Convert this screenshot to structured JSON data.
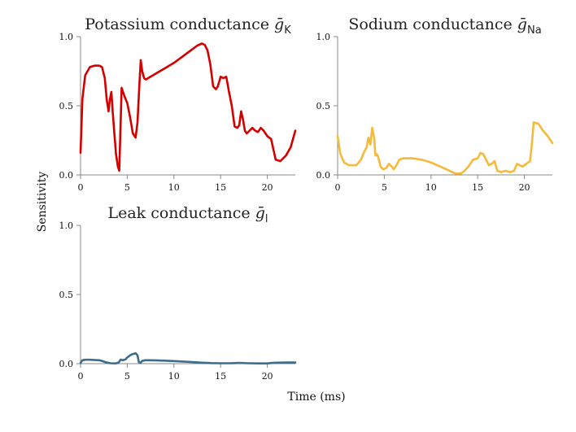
{
  "figure": {
    "xlabel": "Time (ms)",
    "ylabel": "Sensitivity"
  },
  "chart_data": [
    {
      "type": "line",
      "title": "Potassium conductance",
      "title_symbol": "ḡ",
      "title_subscript": "K",
      "xlim": [
        0,
        23
      ],
      "ylim": [
        0,
        1.0
      ],
      "xticks": [
        0,
        5,
        10,
        15,
        20
      ],
      "yticks": [
        "0.0",
        "0.5",
        "1.0"
      ],
      "color": "#d40000",
      "series": [
        {
          "x": [
            0,
            0.2,
            0.5,
            1,
            1.5,
            2,
            2.3,
            2.6,
            2.8,
            3.0,
            3.15,
            3.3,
            3.45,
            3.6,
            3.8,
            4.0,
            4.15,
            4.3,
            4.4,
            4.55,
            4.7,
            5.0,
            5.3,
            5.6,
            5.9,
            6.1,
            6.3,
            6.45,
            6.6,
            6.8,
            7.0,
            7.5,
            8,
            9,
            10,
            11,
            12,
            12.5,
            13,
            13.3,
            13.6,
            13.9,
            14.2,
            14.5,
            14.7,
            15.0,
            15.3,
            15.6,
            15.9,
            16.2,
            16.5,
            16.8,
            17.0,
            17.2,
            17.4,
            17.6,
            17.8,
            18.1,
            18.4,
            18.7,
            19.0,
            19.3,
            19.6,
            20.0,
            20.4,
            20.9,
            21.4,
            22.0,
            22.5,
            23
          ],
          "y": [
            0.16,
            0.55,
            0.72,
            0.78,
            0.79,
            0.79,
            0.78,
            0.7,
            0.55,
            0.46,
            0.55,
            0.6,
            0.45,
            0.32,
            0.15,
            0.06,
            0.03,
            0.4,
            0.63,
            0.6,
            0.57,
            0.52,
            0.42,
            0.3,
            0.27,
            0.38,
            0.65,
            0.83,
            0.75,
            0.7,
            0.69,
            0.71,
            0.73,
            0.77,
            0.81,
            0.86,
            0.91,
            0.935,
            0.95,
            0.94,
            0.9,
            0.8,
            0.64,
            0.62,
            0.64,
            0.71,
            0.7,
            0.71,
            0.6,
            0.5,
            0.35,
            0.34,
            0.36,
            0.46,
            0.4,
            0.32,
            0.3,
            0.32,
            0.34,
            0.32,
            0.31,
            0.34,
            0.32,
            0.28,
            0.26,
            0.11,
            0.1,
            0.14,
            0.2,
            0.32
          ]
        }
      ]
    },
    {
      "type": "line",
      "title": "Sodium conductance",
      "title_symbol": "ḡ",
      "title_subscript": "Na",
      "xlim": [
        0,
        23
      ],
      "ylim": [
        0,
        1.0
      ],
      "xticks": [
        0,
        5,
        10,
        15,
        20
      ],
      "yticks": [
        "0.0",
        "0.5",
        "1.0"
      ],
      "color": "#f5b93b",
      "series": [
        {
          "x": [
            0,
            0.3,
            0.7,
            1.2,
            2.0,
            2.5,
            2.8,
            3.1,
            3.3,
            3.5,
            3.7,
            3.9,
            4.05,
            4.2,
            4.35,
            4.6,
            4.9,
            5.2,
            5.5,
            5.8,
            6.0,
            6.3,
            6.6,
            7.0,
            8,
            9,
            10,
            11,
            12,
            12.6,
            13.2,
            13.6,
            14.0,
            14.5,
            15.0,
            15.3,
            15.6,
            15.9,
            16.2,
            16.5,
            16.8,
            17.1,
            17.5,
            18.0,
            18.5,
            18.9,
            19.2,
            19.5,
            19.8,
            20.2,
            20.6,
            20.8,
            21.0,
            21.5,
            22.0,
            22.5,
            23
          ],
          "y": [
            0.28,
            0.15,
            0.09,
            0.07,
            0.07,
            0.11,
            0.16,
            0.2,
            0.27,
            0.22,
            0.34,
            0.27,
            0.14,
            0.15,
            0.13,
            0.06,
            0.04,
            0.05,
            0.08,
            0.06,
            0.04,
            0.07,
            0.11,
            0.12,
            0.12,
            0.11,
            0.09,
            0.06,
            0.03,
            0.01,
            0.01,
            0.03,
            0.06,
            0.11,
            0.12,
            0.16,
            0.15,
            0.11,
            0.07,
            0.08,
            0.1,
            0.03,
            0.02,
            0.03,
            0.02,
            0.03,
            0.08,
            0.07,
            0.06,
            0.08,
            0.1,
            0.22,
            0.38,
            0.37,
            0.32,
            0.28,
            0.23
          ]
        }
      ]
    },
    {
      "type": "line",
      "title": "Leak conductance",
      "title_symbol": "ḡ",
      "title_subscript": "l",
      "xlim": [
        0,
        23
      ],
      "ylim": [
        0,
        1.0
      ],
      "xticks": [
        0,
        5,
        10,
        15,
        20
      ],
      "yticks": [
        "0.0",
        "0.5",
        "1.0"
      ],
      "color": "#3d6d8c",
      "series": [
        {
          "x": [
            0,
            0.2,
            0.5,
            1,
            2,
            2.3,
            2.7,
            3.2,
            3.8,
            4.1,
            4.3,
            4.5,
            4.8,
            5.0,
            5.3,
            5.6,
            5.9,
            6.1,
            6.25,
            6.4,
            6.6,
            6.9,
            7.3,
            8,
            9,
            10,
            11,
            12,
            13,
            14,
            15,
            16,
            16.5,
            17,
            18,
            19,
            20,
            20.5,
            21,
            22,
            23
          ],
          "y": [
            0.005,
            0.025,
            0.028,
            0.028,
            0.025,
            0.02,
            0.01,
            0.003,
            0.002,
            0.01,
            0.03,
            0.025,
            0.03,
            0.045,
            0.06,
            0.07,
            0.075,
            0.06,
            0.01,
            0.005,
            0.02,
            0.025,
            0.025,
            0.024,
            0.022,
            0.019,
            0.015,
            0.011,
            0.007,
            0.004,
            0.003,
            0.003,
            0.004,
            0.005,
            0.003,
            0.002,
            0.002,
            0.005,
            0.007,
            0.008,
            0.008
          ]
        }
      ]
    }
  ]
}
